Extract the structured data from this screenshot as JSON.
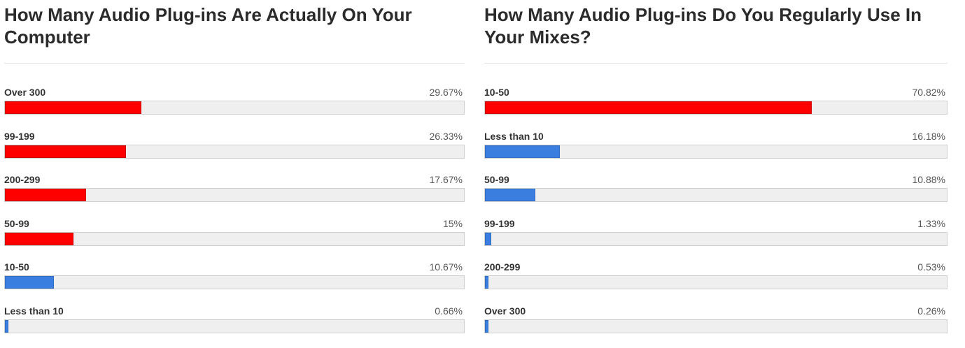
{
  "chart_data": [
    {
      "type": "bar",
      "orientation": "horizontal",
      "title": "How Many Audio Plug-ins Are Actually On Your Computer",
      "categories": [
        "Over 300",
        "99-199",
        "200-299",
        "50-99",
        "10-50",
        "Less than 10"
      ],
      "values": [
        29.67,
        26.33,
        17.67,
        15,
        10.67,
        0.66
      ],
      "value_labels": [
        "29.67%",
        "26.33%",
        "17.67%",
        "15%",
        "10.67%",
        "0.66%"
      ],
      "bar_colors": [
        "#ff0000",
        "#ff0000",
        "#ff0000",
        "#ff0000",
        "#3a7fe0",
        "#3a7fe0"
      ],
      "xlim": [
        0,
        100
      ],
      "legend": "none"
    },
    {
      "type": "bar",
      "orientation": "horizontal",
      "title": "How Many Audio Plug-ins Do You Regularly Use In Your Mixes?",
      "categories": [
        "10-50",
        "Less than 10",
        "50-99",
        "99-199",
        "200-299",
        "Over 300"
      ],
      "values": [
        70.82,
        16.18,
        10.88,
        1.33,
        0.53,
        0.26
      ],
      "value_labels": [
        "70.82%",
        "16.18%",
        "10.88%",
        "1.33%",
        "0.53%",
        "0.26%"
      ],
      "bar_colors": [
        "#ff0000",
        "#3a7fe0",
        "#3a7fe0",
        "#3a7fe0",
        "#3a7fe0",
        "#3a7fe0"
      ],
      "xlim": [
        0,
        100
      ],
      "legend": "none"
    }
  ],
  "colors": {
    "highlight": "#ff0000",
    "highlight_border": "#cc0000",
    "normal": "#3a7fe0",
    "normal_border": "#2f6cc4",
    "track": "#efefef"
  }
}
